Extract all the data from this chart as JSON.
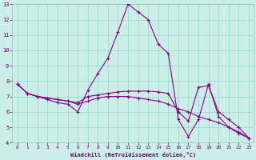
{
  "xlabel": "Windchill (Refroidissement éolien,°C)",
  "bg_color": "#cceee8",
  "grid_color": "#99ddcc",
  "line_color": "#880088",
  "xlim": [
    -0.5,
    23.5
  ],
  "ylim": [
    4,
    13
  ],
  "xticks": [
    0,
    1,
    2,
    3,
    4,
    5,
    6,
    7,
    8,
    9,
    10,
    11,
    12,
    13,
    14,
    15,
    16,
    17,
    18,
    19,
    20,
    21,
    22,
    23
  ],
  "yticks": [
    4,
    5,
    6,
    7,
    8,
    9,
    10,
    11,
    12,
    13
  ],
  "series": [
    {
      "x": [
        0,
        1,
        2,
        3,
        4,
        5,
        6,
        7,
        8,
        9,
        10,
        11,
        12,
        13,
        14,
        15,
        16,
        17,
        18,
        19,
        20,
        21,
        22,
        23
      ],
      "y": [
        7.8,
        7.2,
        7.0,
        6.8,
        6.6,
        6.5,
        6.0,
        7.4,
        8.5,
        9.5,
        11.2,
        13.0,
        12.5,
        12.0,
        10.4,
        9.8,
        5.5,
        4.4,
        5.5,
        7.8,
        5.7,
        5.0,
        4.6,
        4.3
      ]
    },
    {
      "x": [
        0,
        1,
        2,
        3,
        4,
        5,
        6,
        7,
        8,
        9,
        10,
        11,
        12,
        13,
        14,
        15,
        16,
        17,
        18,
        19,
        20,
        21,
        22,
        23
      ],
      "y": [
        7.8,
        7.2,
        7.0,
        6.9,
        6.8,
        6.7,
        6.6,
        7.0,
        7.1,
        7.2,
        7.3,
        7.35,
        7.35,
        7.35,
        7.3,
        7.2,
        6.0,
        5.4,
        7.6,
        7.7,
        6.0,
        5.5,
        5.0,
        4.3
      ]
    },
    {
      "x": [
        0,
        1,
        2,
        3,
        4,
        5,
        6,
        7,
        8,
        9,
        10,
        11,
        12,
        13,
        14,
        15,
        16,
        17,
        18,
        19,
        20,
        21,
        22,
        23
      ],
      "y": [
        7.8,
        7.2,
        7.0,
        6.9,
        6.8,
        6.7,
        6.5,
        6.7,
        6.9,
        7.0,
        7.0,
        7.0,
        6.9,
        6.8,
        6.7,
        6.5,
        6.2,
        6.0,
        5.7,
        5.5,
        5.3,
        5.0,
        4.7,
        4.3
      ]
    }
  ]
}
